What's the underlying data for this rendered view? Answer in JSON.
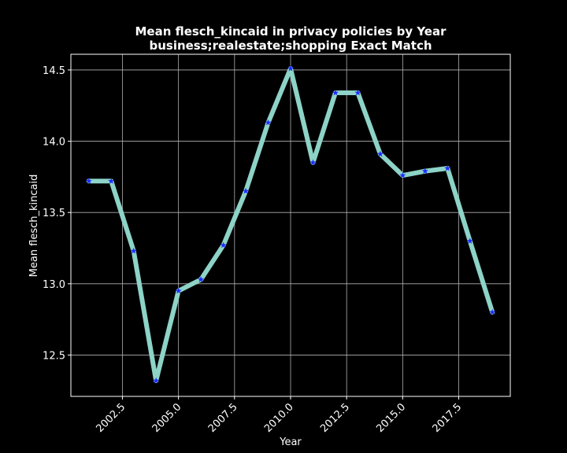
{
  "chart_data": {
    "type": "line",
    "title": "Mean flesch_kincaid in privacy policies by Year",
    "subtitle": "business;realestate;shopping Exact Match",
    "xlabel": "Year",
    "ylabel": "Mean flesch_kincaid",
    "xlim": [
      2000.2,
      2019.8
    ],
    "ylim": [
      12.21,
      14.61
    ],
    "xticks": [
      2002.5,
      2005.0,
      2007.5,
      2010.0,
      2012.5,
      2015.0,
      2017.5
    ],
    "xtick_labels": [
      "2002.5",
      "2005.0",
      "2007.5",
      "2010.0",
      "2012.5",
      "2015.0",
      "2017.5"
    ],
    "yticks": [
      12.5,
      13.0,
      13.5,
      14.0,
      14.5
    ],
    "ytick_labels": [
      "12.5",
      "13.0",
      "13.5",
      "14.0",
      "14.5"
    ],
    "grid": true,
    "series": [
      {
        "x": [
          2001,
          2002,
          2003,
          2004,
          2005,
          2006,
          2007,
          2008,
          2009,
          2010,
          2011,
          2012,
          2013,
          2014,
          2015,
          2016,
          2017,
          2018,
          2019
        ],
        "y": [
          13.72,
          13.72,
          13.23,
          12.32,
          12.95,
          13.03,
          13.27,
          13.65,
          14.13,
          14.51,
          13.85,
          14.34,
          14.34,
          13.91,
          13.76,
          13.79,
          13.81,
          13.3,
          12.8
        ],
        "line_color": "#8dd3c7",
        "marker": "star",
        "marker_color": "#1f2cff"
      }
    ],
    "background_color": "#000000",
    "text_color": "#ffffff",
    "grid_color": "#b0b0b0"
  }
}
